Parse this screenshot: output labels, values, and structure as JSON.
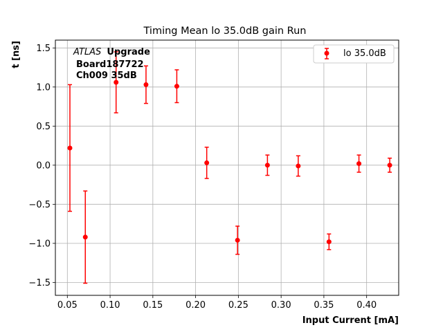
{
  "chart_data": {
    "type": "scatter",
    "title": "Timing Mean lo 35.0dB gain Run",
    "xlabel": "Input Current [mA]",
    "ylabel": "t [ns]",
    "xlim": [
      0.036,
      0.4375
    ],
    "ylim": [
      -1.665,
      1.6
    ],
    "xticks": [
      0.05,
      0.1,
      0.15,
      0.2,
      0.25,
      0.3,
      0.35,
      0.4
    ],
    "xtick_labels": [
      "0.05",
      "0.10",
      "0.15",
      "0.20",
      "0.25",
      "0.30",
      "0.35",
      "0.40"
    ],
    "yticks": [
      -1.5,
      -1.0,
      -0.5,
      0.0,
      0.5,
      1.0,
      1.5
    ],
    "ytick_labels": [
      "−1.5",
      "−1.0",
      "−0.5",
      "0.0",
      "0.5",
      "1.0",
      "1.5"
    ],
    "grid": true,
    "legend_position": "top-right",
    "color": "#ff0000",
    "series": [
      {
        "name": "lo 35.0dB",
        "points": [
          {
            "x": 0.053,
            "y": 0.22,
            "err": 0.81
          },
          {
            "x": 0.071,
            "y": -0.92,
            "err": 0.59
          },
          {
            "x": 0.107,
            "y": 1.06,
            "err": 0.39
          },
          {
            "x": 0.142,
            "y": 1.03,
            "err": 0.24
          },
          {
            "x": 0.178,
            "y": 1.01,
            "err": 0.21
          },
          {
            "x": 0.213,
            "y": 0.03,
            "err": 0.2
          },
          {
            "x": 0.249,
            "y": -0.96,
            "err": 0.18
          },
          {
            "x": 0.284,
            "y": 0.0,
            "err": 0.13
          },
          {
            "x": 0.32,
            "y": -0.01,
            "err": 0.13
          },
          {
            "x": 0.356,
            "y": -0.98,
            "err": 0.1
          },
          {
            "x": 0.391,
            "y": 0.02,
            "err": 0.11
          },
          {
            "x": 0.427,
            "y": 0.0,
            "err": 0.09
          }
        ]
      }
    ],
    "annotation": {
      "atlas": "ATLAS",
      "upgrade": "Upgrade",
      "line2": "Board187722",
      "line3": "Ch009 35dB"
    }
  }
}
